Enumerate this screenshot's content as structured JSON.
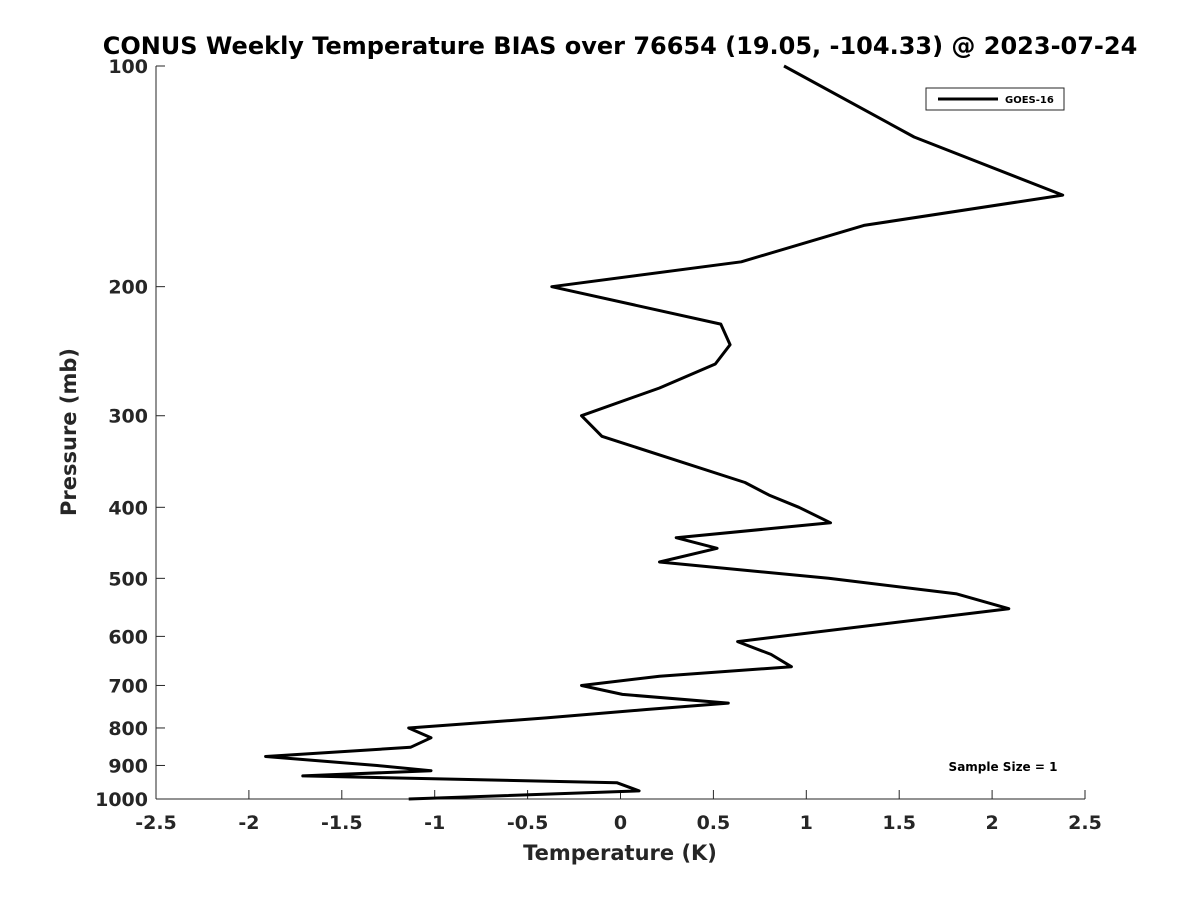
{
  "chart_data": {
    "type": "line",
    "title": "CONUS Weekly Temperature BIAS over 76654 (19.05, -104.33) @ 2023-07-24",
    "xlabel": "Temperature (K)",
    "ylabel": "Pressure (mb)",
    "xlim": [
      -2.5,
      2.5
    ],
    "ylim": [
      100,
      1000
    ],
    "yscale": "log",
    "yaxis_reversed": true,
    "xticks": [
      -2.5,
      -2,
      -1.5,
      -1,
      -0.5,
      0,
      0.5,
      1,
      1.5,
      2,
      2.5
    ],
    "xtick_labels": [
      "-2.5",
      "-2",
      "-1.5",
      "-1",
      "-0.5",
      "0",
      "0.5",
      "1",
      "1.5",
      "2",
      "2.5"
    ],
    "yticks": [
      100,
      200,
      300,
      400,
      500,
      600,
      700,
      800,
      900,
      1000
    ],
    "ytick_labels": [
      "100",
      "200",
      "300",
      "400",
      "500",
      "600",
      "700",
      "800",
      "900",
      "1000"
    ],
    "grid": false,
    "legend_position": "top-right",
    "annotation": "Sample Size = 1",
    "series": [
      {
        "name": "GOES-16",
        "color": "#000000",
        "points": [
          {
            "x": 0.88,
            "y": 100
          },
          {
            "x": 1.58,
            "y": 125
          },
          {
            "x": 2.38,
            "y": 150
          },
          {
            "x": 1.31,
            "y": 165
          },
          {
            "x": 0.65,
            "y": 185
          },
          {
            "x": -0.37,
            "y": 200
          },
          {
            "x": 0.54,
            "y": 225
          },
          {
            "x": 0.59,
            "y": 240
          },
          {
            "x": 0.51,
            "y": 255
          },
          {
            "x": 0.21,
            "y": 275
          },
          {
            "x": -0.21,
            "y": 300
          },
          {
            "x": -0.1,
            "y": 320
          },
          {
            "x": 0.67,
            "y": 370
          },
          {
            "x": 0.8,
            "y": 385
          },
          {
            "x": 0.96,
            "y": 400
          },
          {
            "x": 1.13,
            "y": 420
          },
          {
            "x": 0.3,
            "y": 440
          },
          {
            "x": 0.52,
            "y": 455
          },
          {
            "x": 0.21,
            "y": 475
          },
          {
            "x": 1.12,
            "y": 500
          },
          {
            "x": 1.81,
            "y": 525
          },
          {
            "x": 2.09,
            "y": 550
          },
          {
            "x": 0.63,
            "y": 610
          },
          {
            "x": 0.81,
            "y": 635
          },
          {
            "x": 0.92,
            "y": 660
          },
          {
            "x": 0.21,
            "y": 680
          },
          {
            "x": -0.21,
            "y": 700
          },
          {
            "x": 0.01,
            "y": 720
          },
          {
            "x": 0.58,
            "y": 740
          },
          {
            "x": 0.14,
            "y": 755
          },
          {
            "x": -0.4,
            "y": 775
          },
          {
            "x": -1.14,
            "y": 800
          },
          {
            "x": -1.02,
            "y": 825
          },
          {
            "x": -1.13,
            "y": 850
          },
          {
            "x": -1.91,
            "y": 875
          },
          {
            "x": -1.31,
            "y": 900
          },
          {
            "x": -1.02,
            "y": 915
          },
          {
            "x": -1.71,
            "y": 930
          },
          {
            "x": -0.02,
            "y": 950
          },
          {
            "x": 0.1,
            "y": 975
          },
          {
            "x": -1.14,
            "y": 1000
          }
        ]
      }
    ]
  }
}
